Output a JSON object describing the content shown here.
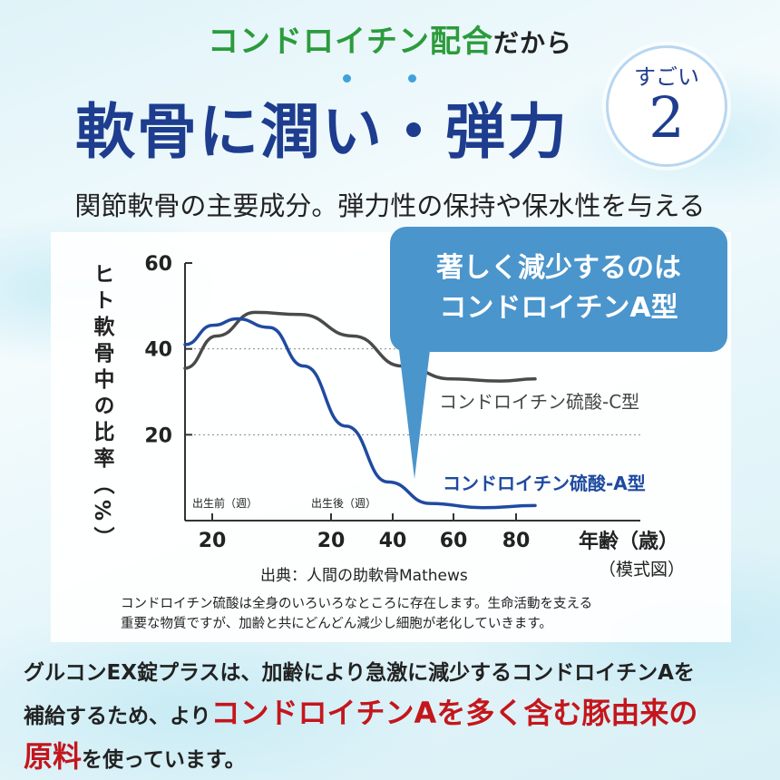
{
  "header": {
    "subtitle_main": "コンドロイチン配合",
    "subtitle_tail": "だから",
    "title": "軟骨に潤い・弾力",
    "badge_top": "すごい",
    "badge_number": "2",
    "lead": "関節軟骨の主要成分。弾力性の保持や保水性を与える"
  },
  "callout": {
    "line1": "著しく減少するのは",
    "line2": "コンドロイチンA型"
  },
  "chart_data": {
    "type": "line",
    "ylabel": "ヒト軟骨中の比率（%）",
    "xlabel": "年齢（歳）",
    "xlabel_note": "（模式図）",
    "ylim": [
      0,
      60
    ],
    "yticks": [
      "60",
      "40",
      "20"
    ],
    "xticks": [
      "20",
      "20",
      "40",
      "60",
      "80"
    ],
    "x_segments": [
      "出生前（週）",
      "出生後（週）"
    ],
    "gridlines": [
      40,
      20
    ],
    "series": [
      {
        "name": "コンドロイチン硫酸-C型",
        "color": "#4a4a4a",
        "points": [
          [
            0,
            35.5
          ],
          [
            0.09,
            43
          ],
          [
            0.2,
            48.5
          ],
          [
            0.33,
            48
          ],
          [
            0.48,
            43
          ],
          [
            0.62,
            36
          ],
          [
            0.76,
            33
          ],
          [
            0.9,
            32.5
          ],
          [
            1.0,
            33
          ]
        ]
      },
      {
        "name": "コンドロイチン硫酸-A型",
        "color": "#1f4aa0",
        "points": [
          [
            0,
            41
          ],
          [
            0.08,
            45.5
          ],
          [
            0.15,
            47
          ],
          [
            0.24,
            45
          ],
          [
            0.34,
            36
          ],
          [
            0.46,
            22
          ],
          [
            0.58,
            9
          ],
          [
            0.7,
            4
          ],
          [
            0.85,
            3
          ],
          [
            1.0,
            3.5
          ]
        ]
      }
    ],
    "source": "出典：人間の助軟骨Mathews",
    "note_line1": "コンドロイチン硫酸は全身のいろいろなところに存在します。生命活動を支える",
    "note_line2": "重要な物質ですが、加齢と共にどんどん減少し細胞が老化していきます。"
  },
  "closing": {
    "line1": "グルコンEX錠プラスは、加齢により急激に減少するコンドロイチンAを",
    "line2_a": "補給するため、より",
    "line2_red": "コンドロイチンAを多く含む豚由来の",
    "line3_red": "原料",
    "line3_b": "を使っています。"
  },
  "colors": {
    "green": "#2c9b3c",
    "navy": "#1e3d8f",
    "callout": "#4a95cc",
    "red": "#c4161c"
  }
}
